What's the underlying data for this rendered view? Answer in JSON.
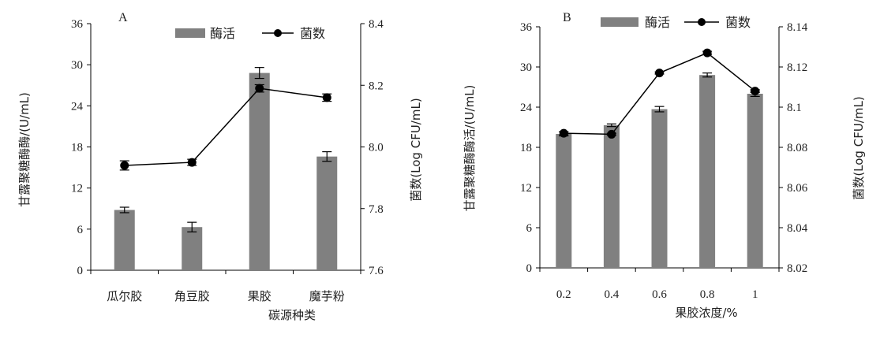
{
  "chart_data": [
    {
      "type": "bar",
      "panel_label": "A",
      "categories": [
        "瓜尔胶",
        "角豆胶",
        "果胶",
        "魔芋粉"
      ],
      "xlabel": "碳源种类",
      "ylabel": "甘露聚糖酶酶/(U/mL)",
      "y2label": "菌数(Log CFU/mL)",
      "ylim": [
        0,
        36
      ],
      "yticks": [
        0,
        6,
        12,
        18,
        24,
        30,
        36
      ],
      "y2lim": [
        7.6,
        8.4
      ],
      "y2ticks": [
        "7.6",
        "7.8",
        "8.0",
        "8.2",
        "8.4"
      ],
      "legend_position": "top-right",
      "series": [
        {
          "name": "酶活",
          "type": "bar",
          "axis": "left",
          "color": "#808080",
          "values": [
            8.8,
            6.3,
            28.8,
            16.6
          ],
          "errors": [
            0.4,
            0.7,
            0.8,
            0.7
          ]
        },
        {
          "name": "菌数",
          "type": "line",
          "axis": "right",
          "color": "#000000",
          "values": [
            7.94,
            7.95,
            8.19,
            8.16
          ],
          "errors": [
            0.015,
            0.01,
            0.012,
            0.012
          ]
        }
      ]
    },
    {
      "type": "bar",
      "panel_label": "B",
      "categories": [
        "0.2",
        "0.4",
        "0.6",
        "0.8",
        "1"
      ],
      "xlabel": "果胶浓度/%",
      "ylabel": "甘露聚糖酶酶活/(U/mL)",
      "y2label": "菌数(Log CFU/mL)",
      "ylim": [
        0,
        36
      ],
      "yticks": [
        0,
        6,
        12,
        18,
        24,
        30,
        36
      ],
      "y2lim": [
        8.02,
        8.14
      ],
      "y2ticks": [
        "8.02",
        "8.04",
        "8.06",
        "8.08",
        "8.1",
        "8.12",
        "8.14"
      ],
      "legend_position": "top-right",
      "series": [
        {
          "name": "酶活",
          "type": "bar",
          "axis": "left",
          "color": "#808080",
          "values": [
            20.0,
            21.3,
            23.7,
            28.8,
            26.0
          ],
          "errors": [
            0.3,
            0.2,
            0.4,
            0.3,
            0.4
          ]
        },
        {
          "name": "菌数",
          "type": "line",
          "axis": "right",
          "color": "#000000",
          "values": [
            8.087,
            8.0865,
            8.117,
            8.127,
            8.108
          ],
          "errors": [
            0.0008,
            0.0005,
            0.0005,
            0.0008,
            0.0007
          ]
        }
      ]
    }
  ]
}
